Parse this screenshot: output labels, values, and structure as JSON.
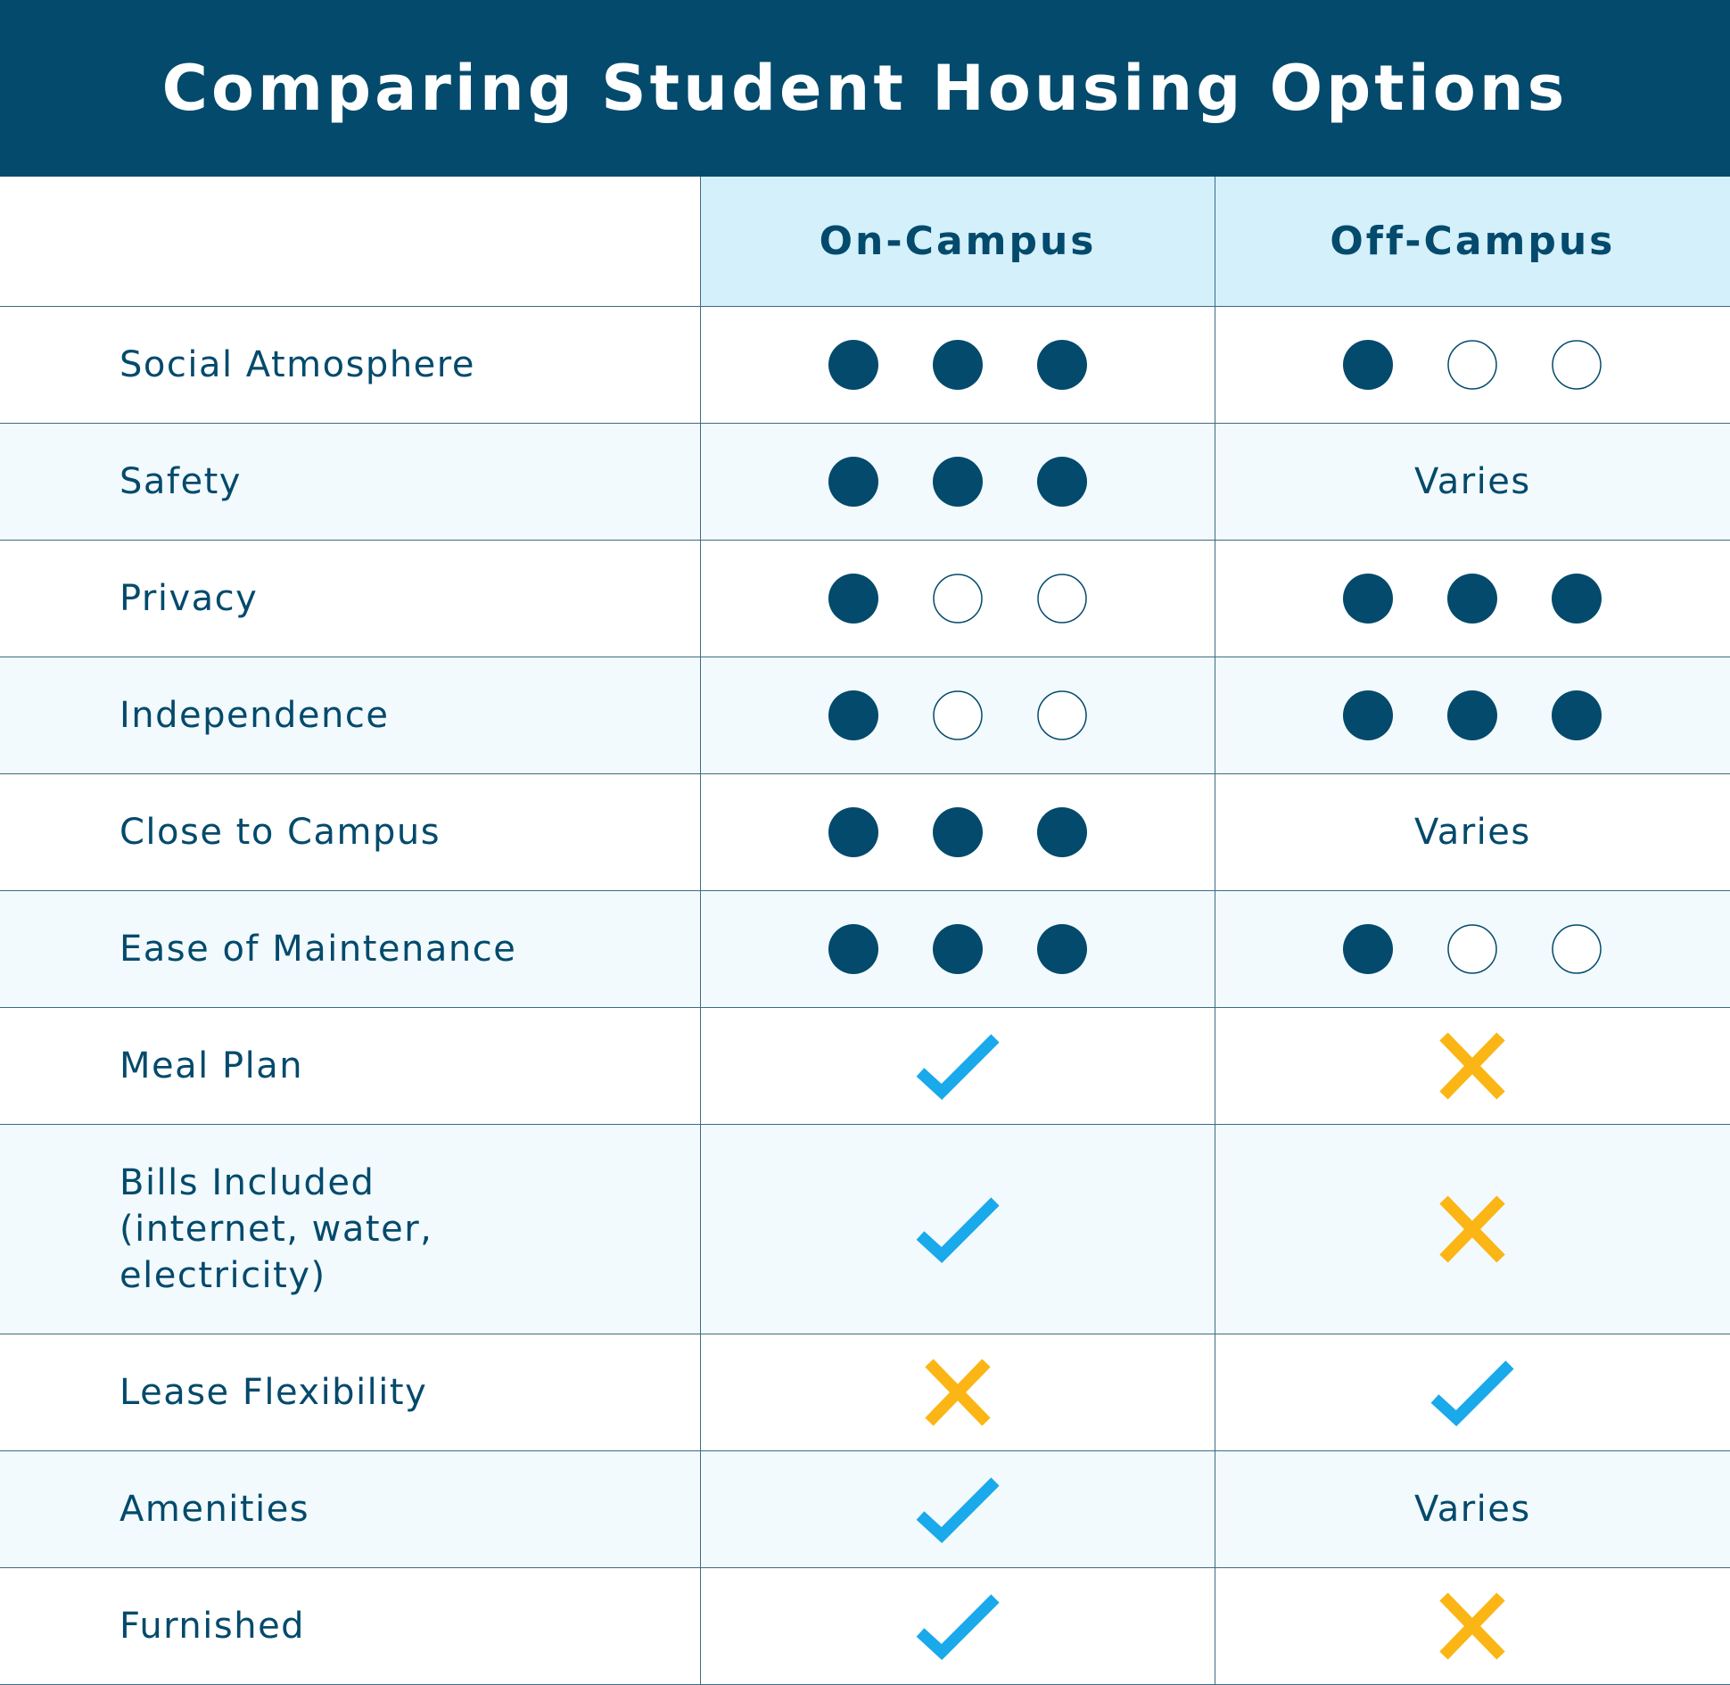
{
  "header": {
    "title": "Comparing Student Housing Options"
  },
  "table": {
    "rating_scale": 3,
    "columns": [
      "On-Campus",
      "Off-Campus"
    ],
    "rows": [
      {
        "label": "Social Atmosphere",
        "values": [
          3,
          1
        ]
      },
      {
        "label": "Safety",
        "values": [
          3,
          "Varies"
        ]
      },
      {
        "label": "Privacy",
        "values": [
          1,
          3
        ]
      },
      {
        "label": "Independence",
        "values": [
          1,
          3
        ]
      },
      {
        "label": "Close to Campus",
        "values": [
          3,
          "Varies"
        ]
      },
      {
        "label": "Ease of Maintenance",
        "values": [
          3,
          1
        ]
      },
      {
        "label": "Meal Plan",
        "values": [
          true,
          false
        ]
      },
      {
        "label": "Bills Included (internet, water, electricity)",
        "values": [
          true,
          false
        ]
      },
      {
        "label": "Lease Flexibility",
        "values": [
          false,
          true
        ]
      },
      {
        "label": "Amenities",
        "values": [
          true,
          "Varies"
        ]
      },
      {
        "label": "Furnished",
        "values": [
          true,
          false
        ]
      }
    ]
  }
}
